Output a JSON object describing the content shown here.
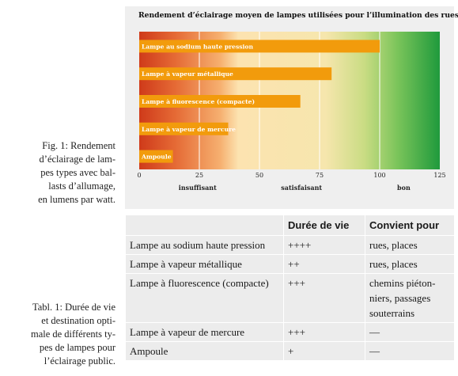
{
  "figure_caption": "Fig. 1: Rendement\nd’éclairage de lam-\npes types avec bal-\nlasts d’allumage,\nen lumens par watt.",
  "table_caption": "Tabl. 1: Durée de vie\net destination opti-\nmale de différents ty-\npes de lampes pour\nl’éclairage public.",
  "chart_data": {
    "type": "bar",
    "orientation": "horizontal",
    "title": "Rendement d’éclairage moyen de lampes utilisées pour l’illumination des rues",
    "categories": [
      "Lampe au sodium haute pression",
      "Lampe à vapeur métallique",
      "Lampe à fluorescence (compacte)",
      "Lampe à vapeur de mercure",
      "Ampoule"
    ],
    "values": [
      100,
      80,
      67,
      37,
      14
    ],
    "xlim": [
      0,
      125
    ],
    "xticks": [
      0,
      25,
      50,
      75,
      100,
      125
    ],
    "xlabel": "",
    "ylabel": "",
    "zones": [
      {
        "label": "insuffisant",
        "from": 0,
        "to": 40
      },
      {
        "label": "satisfaisant",
        "from": 40,
        "to": 95
      },
      {
        "label": "bon",
        "from": 95,
        "to": 125
      }
    ],
    "grid": true,
    "colors": {
      "bar": "#f29b0c",
      "bar_label": "#ffffff",
      "zone_bad": "#cf3a1a",
      "zone_mid": "#fce3b0",
      "zone_good": "#1f9a3c",
      "gridline": "#ffffff"
    }
  },
  "table": {
    "headers": [
      "",
      "Durée de vie",
      "Convient pour"
    ],
    "rows": [
      [
        "Lampe au sodium haute pression",
        "++++",
        "rues, places"
      ],
      [
        "Lampe à vapeur métallique",
        "++",
        "rues, places"
      ],
      [
        "Lampe à fluorescence (compacte)",
        "+++",
        "chemins piéton-niers, passages souterrains"
      ],
      [
        "Lampe à vapeur de mercure",
        "+++",
        "—"
      ],
      [
        "Ampoule",
        "+",
        "—"
      ]
    ]
  }
}
